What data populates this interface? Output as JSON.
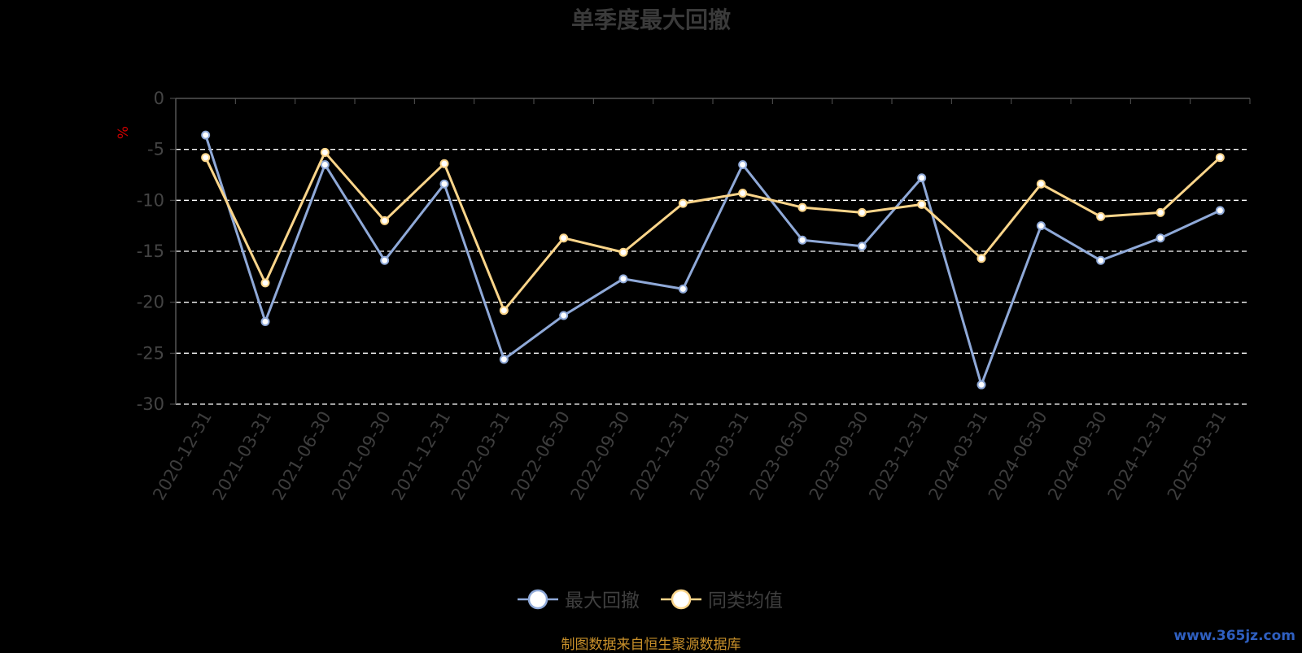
{
  "chart_data": {
    "type": "line",
    "title": "单季度最大回撤",
    "ylabel": "%",
    "ylim": [
      -30,
      0
    ],
    "yticks": [
      0,
      -5,
      -10,
      -15,
      -20,
      -25,
      -30
    ],
    "grid": "dashed horizontal",
    "legend_position": "bottom-center",
    "categories": [
      "2020-12-31",
      "2021-03-31",
      "2021-06-30",
      "2021-09-30",
      "2021-12-31",
      "2022-03-31",
      "2022-06-30",
      "2022-09-30",
      "2022-12-31",
      "2023-03-31",
      "2023-06-30",
      "2023-09-30",
      "2023-12-31",
      "2024-03-31",
      "2024-06-30",
      "2024-09-30",
      "2024-12-31",
      "2025-03-31"
    ],
    "series": [
      {
        "name": "最大回撤",
        "color": "#8fa9d8",
        "values": [
          -3.6,
          -21.9,
          -6.5,
          -15.9,
          -8.4,
          -25.6,
          -21.3,
          -17.7,
          -18.7,
          -6.5,
          -13.9,
          -14.5,
          -7.8,
          -28.1,
          -12.5,
          -15.9,
          -13.7,
          -11.0
        ]
      },
      {
        "name": "同类均值",
        "color": "#fbd58a",
        "values": [
          -5.8,
          -18.1,
          -5.3,
          -12.0,
          -6.4,
          -20.8,
          -13.7,
          -15.1,
          -10.3,
          -9.3,
          -10.7,
          -11.2,
          -10.4,
          -15.7,
          -8.4,
          -11.6,
          -11.2,
          -5.8
        ]
      }
    ]
  },
  "footer": {
    "source": "制图数据来自恒生聚源数据库",
    "watermark": "www.365jz.com"
  }
}
